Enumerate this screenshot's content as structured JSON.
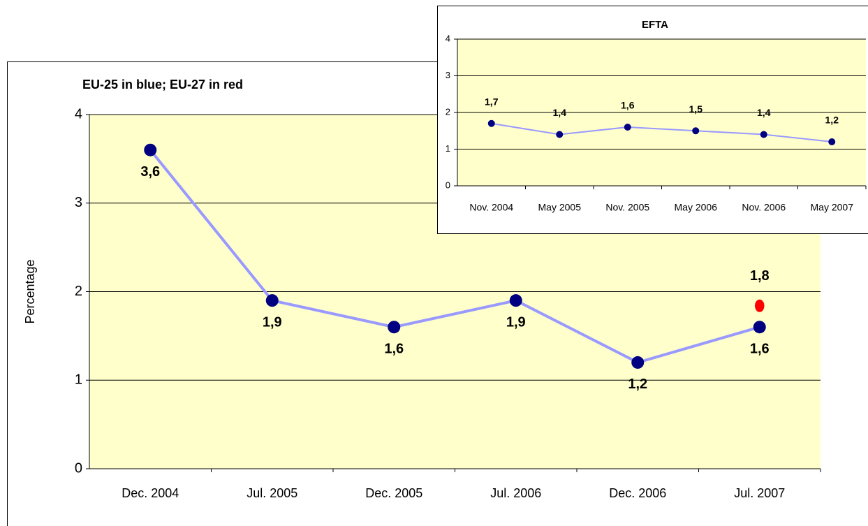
{
  "chart_data": [
    {
      "type": "line",
      "title": "EU-25 in blue; EU-27 in red",
      "y_label": "Percentage",
      "categories": [
        "Dec. 2004",
        "Jul. 2005",
        "Dec. 2005",
        "Jul. 2006",
        "Dec. 2006",
        "Jul. 2007"
      ],
      "series": [
        {
          "name": "EU-25",
          "color": "#000080",
          "line_color": "#9999ff",
          "values": [
            3.6,
            1.9,
            1.6,
            1.9,
            1.2,
            1.6
          ],
          "value_labels": [
            "3,6",
            "1,9",
            "1,6",
            "1,9",
            "1,2",
            "1,6"
          ]
        },
        {
          "name": "EU-27",
          "color": "#ff0000",
          "values": [
            null,
            null,
            null,
            null,
            null,
            1.84
          ],
          "value_labels": [
            null,
            null,
            null,
            null,
            null,
            "1,8"
          ]
        }
      ],
      "ylim": [
        0,
        4
      ],
      "yticks": [
        0,
        1,
        2,
        3,
        4
      ],
      "grid": true
    },
    {
      "type": "line",
      "title": "EFTA",
      "categories": [
        "Nov. 2004",
        "May 2005",
        "Nov. 2005",
        "May 2006",
        "Nov. 2006",
        "May 2007"
      ],
      "series": [
        {
          "name": "EFTA",
          "color": "#000080",
          "line_color": "#9999ff",
          "values": [
            1.7,
            1.4,
            1.6,
            1.5,
            1.4,
            1.2
          ],
          "value_labels": [
            "1,7",
            "1,4",
            "1,6",
            "1,5",
            "1,4",
            "1,2"
          ]
        }
      ],
      "ylim": [
        0,
        4
      ],
      "yticks": [
        0,
        1,
        2,
        3,
        4
      ],
      "grid": true
    }
  ]
}
